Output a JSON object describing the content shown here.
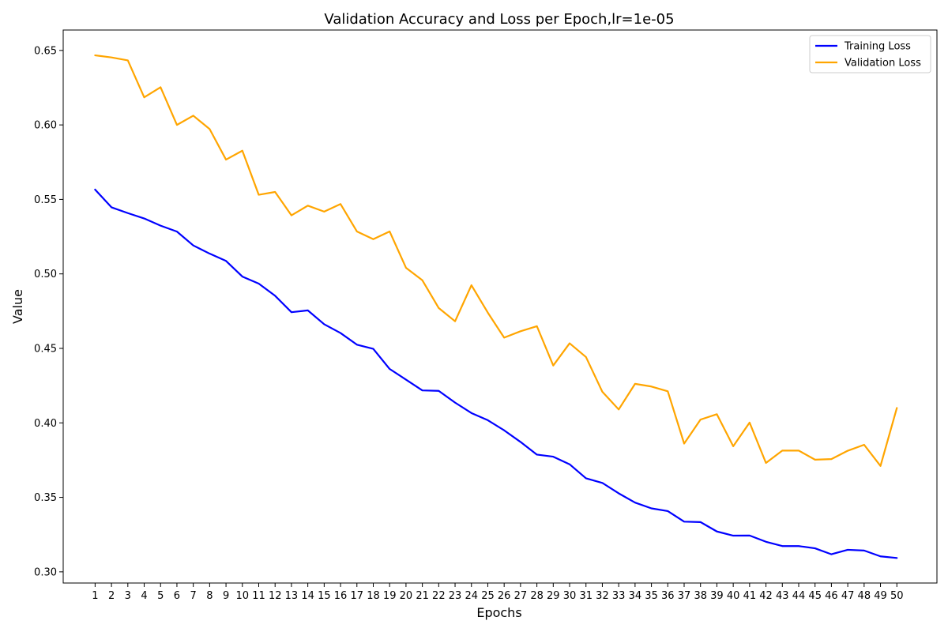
{
  "chart_data": {
    "type": "line",
    "title": "Validation Accuracy and Loss per Epoch,lr=1e-05",
    "xlabel": "Epochs",
    "ylabel": "Value",
    "x": [
      1,
      2,
      3,
      4,
      5,
      6,
      7,
      8,
      9,
      10,
      11,
      12,
      13,
      14,
      15,
      16,
      17,
      18,
      19,
      20,
      21,
      22,
      23,
      24,
      25,
      26,
      27,
      28,
      29,
      30,
      31,
      32,
      33,
      34,
      35,
      36,
      37,
      38,
      39,
      40,
      41,
      42,
      43,
      44,
      45,
      46,
      47,
      48,
      49,
      50
    ],
    "xlim": [
      -0.95,
      52.45
    ],
    "ylim": [
      0.2925,
      0.6637
    ],
    "yticks": [
      0.3,
      0.35,
      0.4,
      0.45,
      0.5,
      0.55,
      0.6,
      0.65
    ],
    "ytick_labels": [
      "0.30",
      "0.35",
      "0.40",
      "0.45",
      "0.50",
      "0.55",
      "0.60",
      "0.65"
    ],
    "grid": false,
    "legend_position": "top-right",
    "series": [
      {
        "name": "Training Loss",
        "color": "#0000ff",
        "values": [
          0.5566,
          0.5447,
          0.5408,
          0.5372,
          0.5324,
          0.5284,
          0.5191,
          0.5136,
          0.5087,
          0.4982,
          0.4935,
          0.4853,
          0.4743,
          0.4755,
          0.4662,
          0.4603,
          0.4525,
          0.4497,
          0.4362,
          0.429,
          0.4218,
          0.4215,
          0.4136,
          0.4066,
          0.4018,
          0.395,
          0.3872,
          0.3787,
          0.3773,
          0.3722,
          0.3628,
          0.3597,
          0.3527,
          0.3465,
          0.3426,
          0.3408,
          0.3337,
          0.3334,
          0.3271,
          0.3243,
          0.3244,
          0.3202,
          0.3173,
          0.3173,
          0.3158,
          0.3118,
          0.3148,
          0.3143,
          0.3104,
          0.3093
        ]
      },
      {
        "name": "Validation Loss",
        "color": "#ffa500",
        "values": [
          0.6467,
          0.6453,
          0.6433,
          0.6185,
          0.6253,
          0.6,
          0.6062,
          0.5972,
          0.5767,
          0.5827,
          0.5531,
          0.555,
          0.5393,
          0.5458,
          0.5418,
          0.5469,
          0.5285,
          0.5233,
          0.5285,
          0.5041,
          0.4957,
          0.4771,
          0.4682,
          0.4924,
          0.474,
          0.4572,
          0.4615,
          0.4649,
          0.4385,
          0.4534,
          0.4442,
          0.4209,
          0.409,
          0.4262,
          0.4244,
          0.4212,
          0.3861,
          0.4022,
          0.4058,
          0.3843,
          0.4002,
          0.3731,
          0.3814,
          0.3814,
          0.3753,
          0.3757,
          0.3813,
          0.3853,
          0.3711,
          0.41
        ]
      }
    ]
  }
}
